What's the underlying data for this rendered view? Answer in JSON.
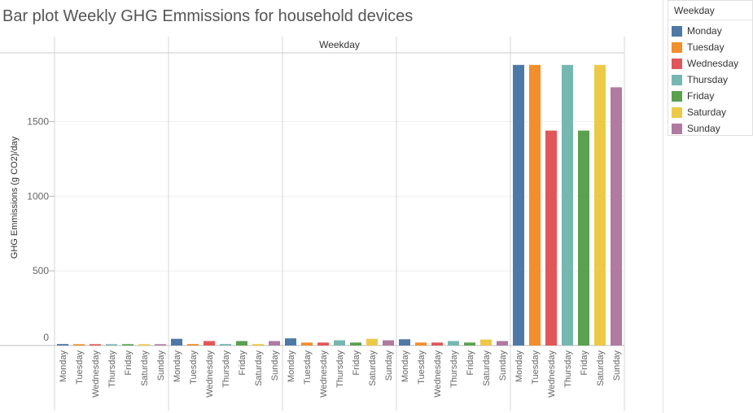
{
  "page": {
    "title": "Bar plot Weekly GHG Emmissions for household devices"
  },
  "legend": {
    "title": "Weekday",
    "items": [
      {
        "label": "Monday",
        "color": "#4e79a7"
      },
      {
        "label": "Tuesday",
        "color": "#f28e2b"
      },
      {
        "label": "Wednesday",
        "color": "#e15759"
      },
      {
        "label": "Thursday",
        "color": "#76b7b2"
      },
      {
        "label": "Friday",
        "color": "#59a14f"
      },
      {
        "label": "Saturday",
        "color": "#edc948"
      },
      {
        "label": "Sunday",
        "color": "#b07aa1"
      }
    ]
  },
  "chart_data": {
    "type": "bar",
    "title": "Bar plot Weekly GHG Emmissions for household devices",
    "column_header": "Weekday",
    "ylabel": "GHG Emmissions (g CO2)/day",
    "ylim": [
      0,
      1900
    ],
    "yticks": [
      0,
      500,
      1000,
      1500
    ],
    "grid": true,
    "legend_position": "top-right",
    "categories": [
      "Monday",
      "Tuesday",
      "Wednesday",
      "Thursday",
      "Friday",
      "Saturday",
      "Sunday"
    ],
    "series": [
      {
        "values": [
          10,
          9,
          9,
          9,
          9,
          9,
          9
        ]
      },
      {
        "values": [
          45,
          10,
          30,
          10,
          30,
          10,
          30
        ]
      },
      {
        "values": [
          48,
          20,
          20,
          35,
          20,
          45,
          35
        ]
      },
      {
        "values": [
          42,
          20,
          20,
          30,
          20,
          40,
          30
        ]
      },
      {
        "values": [
          1880,
          1880,
          1440,
          1880,
          1440,
          1880,
          1730
        ]
      }
    ]
  }
}
